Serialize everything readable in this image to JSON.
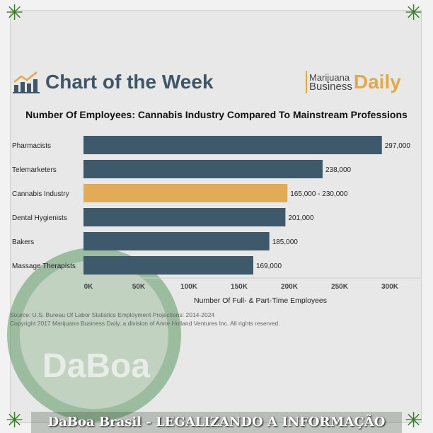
{
  "header": {
    "title": "Chart of the Week",
    "logo_line1": "Marijuana",
    "logo_line2": "Business",
    "logo_big": "Daily"
  },
  "subtitle": "Number Of Employees: Cannabis Industry Compared To Mainstream Professions",
  "source": "Source: U.S. Bureau Of Labor Statistics Employment Projections: 2014-2024",
  "copyright": "Copyright 2017 Marijuana Business Daily, a division of Anne Holland Ventures Inc. All rights reserved.",
  "watermark": "DaBoa",
  "banner": "DaBoa Brasil - LEGALIZANDO A INFORMAÇÃO",
  "colors": {
    "bar": "#3e596b",
    "highlight": "#e2ab58",
    "accent": "#e2a84c"
  },
  "chart_data": {
    "type": "bar",
    "orientation": "horizontal",
    "title": "",
    "xlabel": "Number Of Full- & Part-Time Employees",
    "ylabel": "",
    "xlim": [
      0,
      330000
    ],
    "grid": false,
    "categories": [
      "Pharmacists",
      "Telemarketers",
      "Cannabis Industry",
      "Dental Hygienists",
      "Bakers",
      "Massage Therapists"
    ],
    "values": [
      297000,
      238000,
      203000,
      201000,
      185000,
      169000
    ],
    "data_labels": [
      "297,000",
      "238,000",
      "165,000 - 230,000",
      "201,000",
      "185,000",
      "169,000"
    ],
    "highlight": [
      false,
      false,
      true,
      false,
      false,
      false
    ],
    "xticks": [
      0,
      50000,
      100000,
      150000,
      200000,
      250000,
      300000
    ],
    "xtick_labels": [
      "0K",
      "50K",
      "100K",
      "150K",
      "200K",
      "250K",
      "300K"
    ]
  }
}
